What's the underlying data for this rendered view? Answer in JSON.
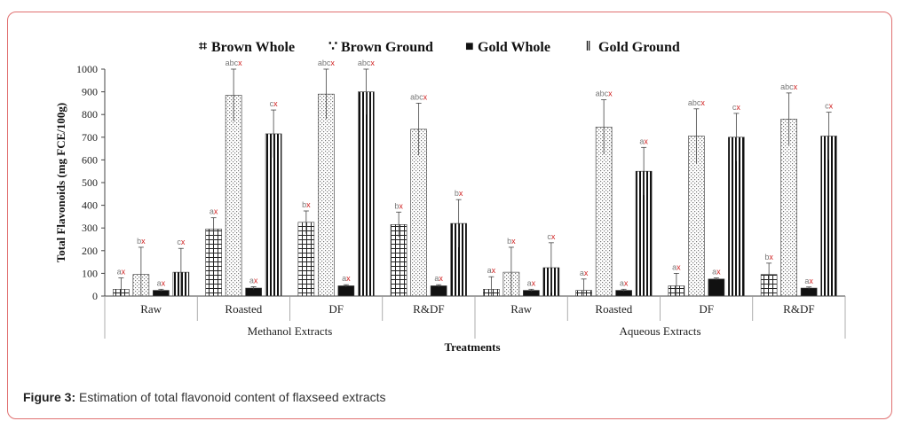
{
  "figure": {
    "caption_prefix": "Figure 3:",
    "caption_text": " Estimation of total flavonoid content of flaxseed extracts"
  },
  "colors": {
    "frame": "#e07070",
    "label_gray": "#777777",
    "label_red": "#d02020",
    "bar_dark": "#111111"
  },
  "chart_data": {
    "type": "bar",
    "ylabel": "Total Flavonoids (mg FCE/100g)",
    "xlabel": "Treatments",
    "ylim": [
      0,
      1000
    ],
    "yticks": [
      "0",
      "100",
      "200",
      "300",
      "400",
      "500",
      "600",
      "700",
      "800",
      "900",
      "1000"
    ],
    "groups": [
      {
        "name": "Methanol Extracts",
        "categories": [
          "Raw",
          "Roasted",
          "DF",
          "R&DF"
        ]
      },
      {
        "name": "Aqueous Extracts",
        "categories": [
          "Raw",
          "Roasted",
          "DF",
          "R&DF"
        ]
      }
    ],
    "series": [
      {
        "name": "Brown Whole",
        "legend_symbol": "⌗",
        "values": [
          30,
          295,
          325,
          315,
          30,
          25,
          45,
          95
        ],
        "errors": [
          50,
          50,
          50,
          55,
          55,
          50,
          55,
          50
        ],
        "labels": [
          [
            "a",
            "x"
          ],
          [
            "a",
            "x"
          ],
          [
            "b",
            "x"
          ],
          [
            "b",
            "x"
          ],
          [
            "a",
            "x"
          ],
          [
            "a",
            "x"
          ],
          [
            "a",
            "x"
          ],
          [
            "b",
            "x"
          ]
        ]
      },
      {
        "name": "Brown Ground",
        "legend_symbol": "∵",
        "values": [
          95,
          885,
          890,
          735,
          105,
          745,
          705,
          780
        ],
        "errors": [
          120,
          115,
          110,
          115,
          110,
          120,
          120,
          115
        ],
        "labels": [
          [
            "b",
            "x"
          ],
          [
            "abc",
            "x"
          ],
          [
            "abc",
            "x"
          ],
          [
            "abc",
            "x"
          ],
          [
            "b",
            "x"
          ],
          [
            "abc",
            "x"
          ],
          [
            "abc",
            "x"
          ],
          [
            "abc",
            "x"
          ]
        ]
      },
      {
        "name": "Gold  Whole",
        "legend_symbol": "■",
        "values": [
          25,
          35,
          45,
          45,
          25,
          25,
          75,
          35
        ],
        "errors": [
          5,
          6,
          5,
          5,
          5,
          5,
          5,
          5
        ],
        "labels": [
          [
            "a",
            "x"
          ],
          [
            "a",
            "x"
          ],
          [
            "a",
            "x"
          ],
          [
            "a",
            "x"
          ],
          [
            "a",
            "x"
          ],
          [
            "a",
            "x"
          ],
          [
            "a",
            "x"
          ],
          [
            "a",
            "x"
          ]
        ]
      },
      {
        "name": "Gold  Ground",
        "legend_symbol": "‖",
        "values": [
          105,
          715,
          900,
          320,
          125,
          550,
          700,
          705
        ],
        "errors": [
          105,
          105,
          100,
          105,
          110,
          105,
          105,
          105
        ],
        "labels": [
          [
            "c",
            "x"
          ],
          [
            "c",
            "x"
          ],
          [
            "abc",
            "x"
          ],
          [
            "b",
            "x"
          ],
          [
            "c",
            "x"
          ],
          [
            "a",
            "x"
          ],
          [
            "c",
            "x"
          ],
          [
            "c",
            "x"
          ]
        ]
      }
    ]
  }
}
